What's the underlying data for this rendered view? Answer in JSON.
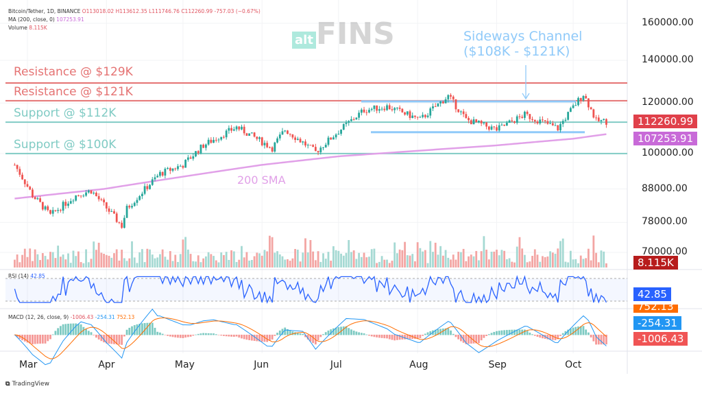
{
  "header": {
    "symbol": "Bitcoin/Tether, 1D, BINANCE",
    "o": "O113018.02",
    "h": "H113612.35",
    "l": "L111746.76",
    "c": "C112260.99",
    "chg": "-757.03 (−0.67%)",
    "ma_label": "MA (200, close, 0)",
    "ma_value": "107253.91",
    "vol_label": "Volume",
    "vol_value": "8.115K",
    "rsi_label": "RSI (14)",
    "rsi_value": "42.85",
    "macd_label": "MACD (12, 26, close, 9)",
    "macd_v1": "-1006.43",
    "macd_v2": "-254.31",
    "macd_v3": "752.13"
  },
  "watermark": {
    "alt": "alt",
    "fins": "FINS"
  },
  "annotations": {
    "res129": "Resistance @ $129K",
    "res121": "Resistance @ $121K",
    "sup112": "Support @ $112K",
    "sup100": "Support @ $100K",
    "channel1": "Sideways Channel",
    "channel2": "($108K - $121K)",
    "sma": "200 SMA"
  },
  "tags": {
    "price": "112260.99",
    "ma": "107253.91",
    "volume": "8.115K",
    "rsi": "42.85",
    "macd_signal": "752.13",
    "macd_line": "-254.31",
    "macd_hist": "-1006.43"
  },
  "footer": {
    "brand": "TradingView"
  },
  "colors": {
    "up": "#26a69a",
    "down": "#ef5350",
    "sma": "#e1a0e8",
    "resistance": "#e57373",
    "support": "#80cbc4",
    "channel": "#90caf9"
  },
  "chart_data": {
    "type": "candlestick",
    "title": "Bitcoin/Tether, 1D, BINANCE",
    "y_ticks": [
      "160000.00",
      "140000.00",
      "120000.00",
      "100000.00",
      "88000.00",
      "78000.00",
      "70000.00"
    ],
    "y_tick_values": [
      160000,
      140000,
      120000,
      100000,
      88000,
      78000,
      70000
    ],
    "x_ticks": [
      "Mar",
      "Apr",
      "May",
      "Jun",
      "Jul",
      "Aug",
      "Sep",
      "Oct"
    ],
    "x_tick_days": [
      0,
      31,
      61,
      92,
      122,
      153,
      184,
      214
    ],
    "price_path": [
      [
        -5,
        96000
      ],
      [
        2,
        86000
      ],
      [
        9,
        80000
      ],
      [
        19,
        86000
      ],
      [
        25,
        87500
      ],
      [
        30,
        83000
      ],
      [
        37,
        77000
      ],
      [
        39,
        82000
      ],
      [
        52,
        93000
      ],
      [
        61,
        96000
      ],
      [
        69,
        103000
      ],
      [
        82,
        110000
      ],
      [
        96,
        102000
      ],
      [
        101,
        109000
      ],
      [
        113,
        100500
      ],
      [
        121,
        107500
      ],
      [
        132,
        117000
      ],
      [
        141,
        118500
      ],
      [
        154,
        113000
      ],
      [
        165,
        123000
      ],
      [
        172,
        113000
      ],
      [
        184,
        109000
      ],
      [
        195,
        115000
      ],
      [
        208,
        109500
      ],
      [
        218,
        124000
      ],
      [
        223,
        112500
      ],
      [
        227,
        112260
      ]
    ],
    "sma_path": [
      [
        -5,
        85000
      ],
      [
        30,
        88000
      ],
      [
        61,
        92000
      ],
      [
        92,
        96000
      ],
      [
        122,
        99000
      ],
      [
        153,
        101000
      ],
      [
        184,
        103000
      ],
      [
        214,
        105500
      ],
      [
        227,
        107254
      ]
    ],
    "levels": [
      129000,
      121000,
      112000,
      100000
    ],
    "channel": [
      108000,
      121000
    ]
  }
}
